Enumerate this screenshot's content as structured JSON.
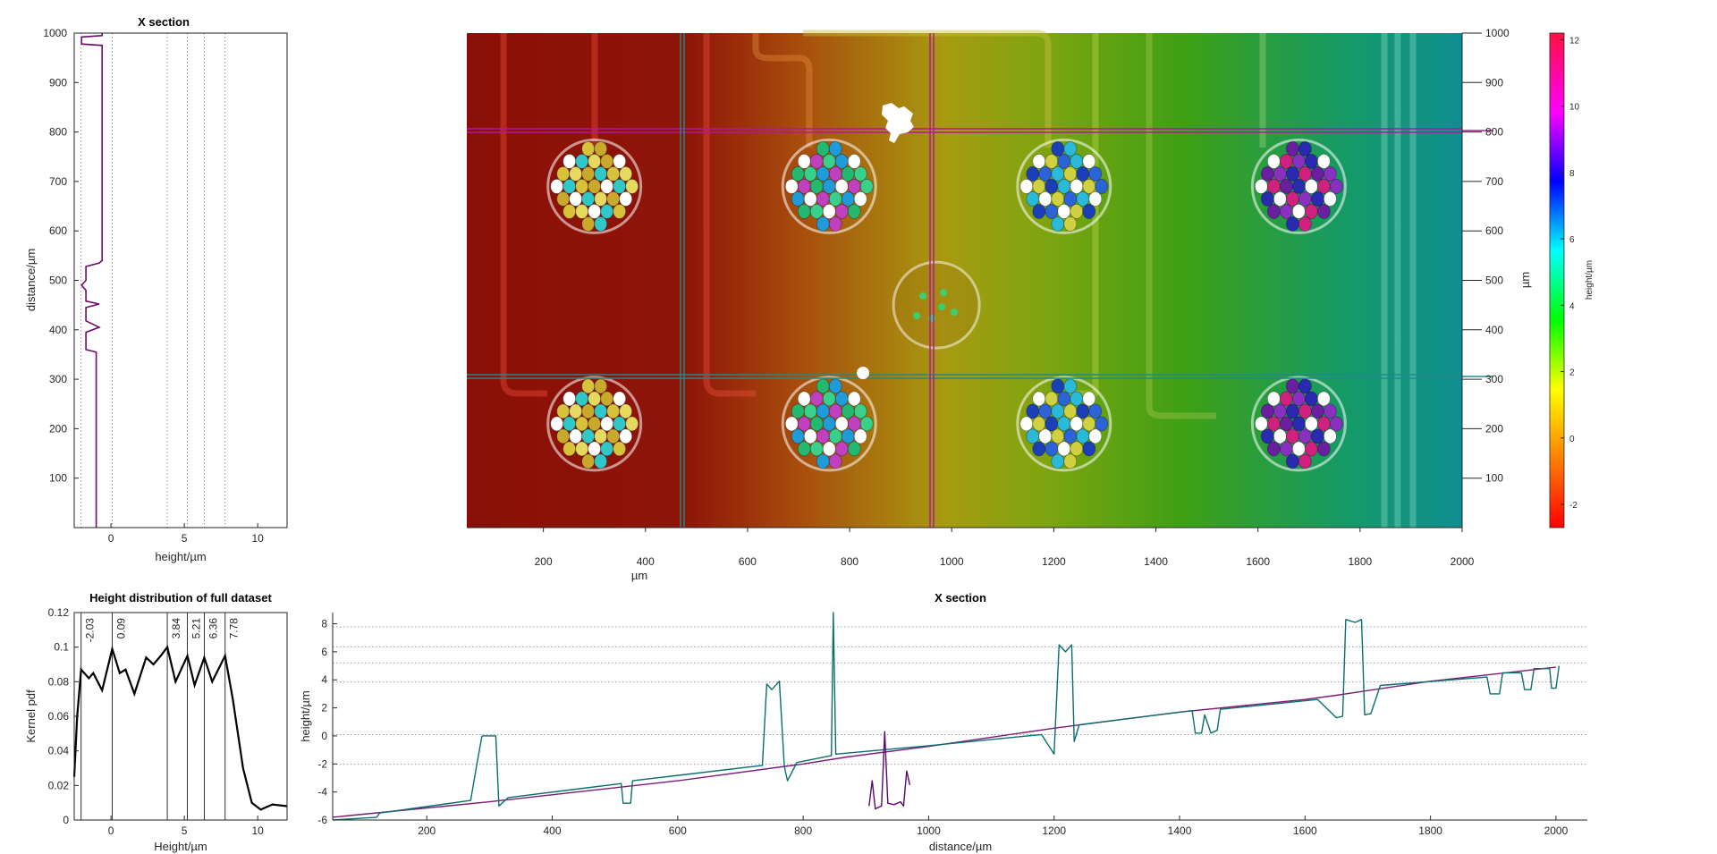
{
  "chart_data": [
    {
      "id": "x-section-vertical",
      "type": "line",
      "title": "X section",
      "xlabel": "height/µm",
      "ylabel": "distance/µm",
      "xlim": [
        -2.5,
        12
      ],
      "ylim": [
        0,
        1000
      ],
      "xticks": [
        0,
        5,
        10
      ],
      "yticks": [
        100,
        200,
        300,
        400,
        500,
        600,
        700,
        800,
        900,
        1000
      ],
      "guide_lines_x": [
        -2.03,
        0.09,
        3.84,
        5.21,
        6.36,
        7.78
      ],
      "series": [
        {
          "color": "#6a0a6a",
          "points": [
            [
              -1.0,
              0
            ],
            [
              -1.0,
              355
            ],
            [
              -1.7,
              360
            ],
            [
              -1.7,
              395
            ],
            [
              -0.8,
              405
            ],
            [
              -1.7,
              418
            ],
            [
              -1.7,
              445
            ],
            [
              -0.8,
              452
            ],
            [
              -1.7,
              458
            ],
            [
              -1.7,
              480
            ],
            [
              -2.0,
              490
            ],
            [
              -1.7,
              500
            ],
            [
              -1.7,
              528
            ],
            [
              -0.8,
              535
            ],
            [
              -0.6,
              540
            ],
            [
              -0.6,
              975
            ],
            [
              -2.0,
              978
            ],
            [
              -2.0,
              992
            ],
            [
              -0.6,
              995
            ],
            [
              -0.6,
              1000
            ]
          ]
        }
      ]
    },
    {
      "id": "height-map",
      "type": "heatmap",
      "xlabel": "µm",
      "ylabel": "µm",
      "xlim": [
        50,
        2000
      ],
      "ylim": [
        0,
        1000
      ],
      "xticks": [
        200,
        400,
        600,
        800,
        1000,
        1200,
        1400,
        1600,
        1800,
        2000
      ],
      "yticks": [
        100,
        200,
        300,
        400,
        500,
        600,
        700,
        800,
        900,
        1000
      ],
      "colorbar_label": "height/µm",
      "colorbar_range": [
        -2.7,
        12.2
      ],
      "colorbar_ticks": [
        -2,
        0,
        2,
        4,
        6,
        8,
        10,
        12
      ],
      "colormap": [
        "#ff0000",
        "#ff8000",
        "#ffff00",
        "#00ff00",
        "#00ffff",
        "#0000ff",
        "#ff00ff",
        "#ff0040"
      ],
      "section_lines": [
        {
          "orientation": "horizontal",
          "at": 803,
          "color": "#b3179d"
        },
        {
          "orientation": "horizontal",
          "at": 307,
          "color": "#1f8a8a"
        },
        {
          "orientation": "vertical",
          "at": 1000,
          "color": "#b3179d"
        },
        {
          "orientation": "vertical",
          "at": 485,
          "color": "#1f8a8a"
        }
      ]
    },
    {
      "id": "height-distribution",
      "type": "line",
      "title": "Height distribution of full dataset",
      "xlabel": "Height/µm",
      "ylabel": "Kernel pdf",
      "xlim": [
        -2.5,
        12
      ],
      "ylim": [
        0,
        0.12
      ],
      "xticks": [
        0,
        5,
        10
      ],
      "yticks": [
        0,
        0.02,
        0.04,
        0.06,
        0.08,
        0.1,
        0.12
      ],
      "peak_labels": [
        "-2.03",
        "0.09",
        "3.84",
        "5.21",
        "6.36",
        "7.78"
      ],
      "peak_positions": [
        -2.03,
        0.09,
        3.84,
        5.21,
        6.36,
        7.78
      ],
      "series": [
        {
          "color": "#000000",
          "points": [
            [
              -2.5,
              0.025
            ],
            [
              -2.3,
              0.06
            ],
            [
              -2.03,
              0.087
            ],
            [
              -1.5,
              0.082
            ],
            [
              -1.2,
              0.085
            ],
            [
              -0.6,
              0.075
            ],
            [
              0.09,
              0.099
            ],
            [
              0.6,
              0.085
            ],
            [
              1.0,
              0.087
            ],
            [
              1.6,
              0.073
            ],
            [
              2.4,
              0.094
            ],
            [
              2.9,
              0.09
            ],
            [
              3.4,
              0.095
            ],
            [
              3.84,
              0.1
            ],
            [
              4.4,
              0.08
            ],
            [
              5.21,
              0.095
            ],
            [
              5.7,
              0.078
            ],
            [
              6.36,
              0.094
            ],
            [
              6.9,
              0.08
            ],
            [
              7.78,
              0.095
            ],
            [
              8.3,
              0.07
            ],
            [
              9.0,
              0.03
            ],
            [
              9.6,
              0.01
            ],
            [
              10.2,
              0.006
            ],
            [
              11.0,
              0.009
            ],
            [
              12.0,
              0.008
            ]
          ]
        }
      ]
    },
    {
      "id": "x-section-horizontal",
      "type": "line",
      "title": "X section",
      "xlabel": "distance/µm",
      "ylabel": "height/µm",
      "xlim": [
        50,
        2050
      ],
      "ylim": [
        -6,
        8.8
      ],
      "xticks": [
        200,
        400,
        600,
        800,
        1000,
        1200,
        1400,
        1600,
        1800,
        2000
      ],
      "yticks": [
        -6,
        -4,
        -2,
        0,
        2,
        4,
        6,
        8
      ],
      "guide_lines_y": [
        -2.03,
        0.09,
        3.84,
        5.21,
        6.36,
        7.78
      ],
      "series": [
        {
          "color": "#7a1a7a",
          "points": [
            [
              50,
              -5.8
            ],
            [
              300,
              -4.7
            ],
            [
              600,
              -3.2
            ],
            [
              800,
              -2.0
            ],
            [
              870,
              -1.5
            ],
            [
              1000,
              -0.75
            ],
            [
              1200,
              0.55
            ],
            [
              1400,
              1.7
            ],
            [
              1600,
              2.6
            ],
            [
              1650,
              2.9
            ],
            [
              1800,
              3.9
            ],
            [
              2000,
              4.9
            ]
          ]
        },
        {
          "color": "#0b6e6e",
          "points": [
            [
              50,
              -6.0
            ],
            [
              120,
              -5.8
            ],
            [
              125,
              -5.5
            ],
            [
              270,
              -4.6
            ],
            [
              280,
              -2.0
            ],
            [
              288,
              0
            ],
            [
              310,
              0
            ],
            [
              315,
              -5.0
            ],
            [
              330,
              -4.4
            ],
            [
              510,
              -3.4
            ],
            [
              513,
              -4.8
            ],
            [
              525,
              -4.8
            ],
            [
              528,
              -3.2
            ],
            [
              735,
              -2.1
            ],
            [
              742,
              3.7
            ],
            [
              750,
              3.3
            ],
            [
              762,
              3.9
            ],
            [
              770,
              -2.2
            ],
            [
              775,
              -3.2
            ],
            [
              790,
              -1.9
            ],
            [
              845,
              -1.4
            ],
            [
              848,
              8.8
            ],
            [
              852,
              -1.3
            ],
            [
              1000,
              -0.7
            ],
            [
              1180,
              0.1
            ],
            [
              1200,
              -1.3
            ],
            [
              1208,
              6.5
            ],
            [
              1218,
              6.0
            ],
            [
              1228,
              6.5
            ],
            [
              1232,
              -0.4
            ],
            [
              1240,
              0.8
            ],
            [
              1420,
              1.8
            ],
            [
              1425,
              0.2
            ],
            [
              1435,
              0.2
            ],
            [
              1440,
              1.5
            ],
            [
              1450,
              0.2
            ],
            [
              1460,
              0.4
            ],
            [
              1465,
              1.9
            ],
            [
              1620,
              2.6
            ],
            [
              1650,
              1.3
            ],
            [
              1660,
              1.4
            ],
            [
              1665,
              8.3
            ],
            [
              1680,
              8.1
            ],
            [
              1690,
              8.3
            ],
            [
              1695,
              1.5
            ],
            [
              1705,
              1.6
            ],
            [
              1720,
              3.6
            ],
            [
              1890,
              4.2
            ],
            [
              1895,
              3.0
            ],
            [
              1910,
              3.0
            ],
            [
              1915,
              4.5
            ],
            [
              1945,
              4.5
            ],
            [
              1950,
              3.3
            ],
            [
              1960,
              3.3
            ],
            [
              1965,
              4.8
            ],
            [
              1990,
              4.8
            ],
            [
              1993,
              3.4
            ],
            [
              2000,
              3.4
            ],
            [
              2005,
              5.0
            ]
          ]
        },
        {
          "color": "#5a0a6a",
          "points": [
            [
              905,
              -5.0
            ],
            [
              910,
              -3.2
            ],
            [
              915,
              -5.2
            ],
            [
              925,
              -5.0
            ],
            [
              930,
              0.3
            ],
            [
              935,
              -4.8
            ],
            [
              945,
              -4.9
            ],
            [
              955,
              -4.7
            ],
            [
              960,
              -5.0
            ],
            [
              965,
              -2.5
            ],
            [
              970,
              -3.5
            ]
          ]
        }
      ]
    }
  ]
}
